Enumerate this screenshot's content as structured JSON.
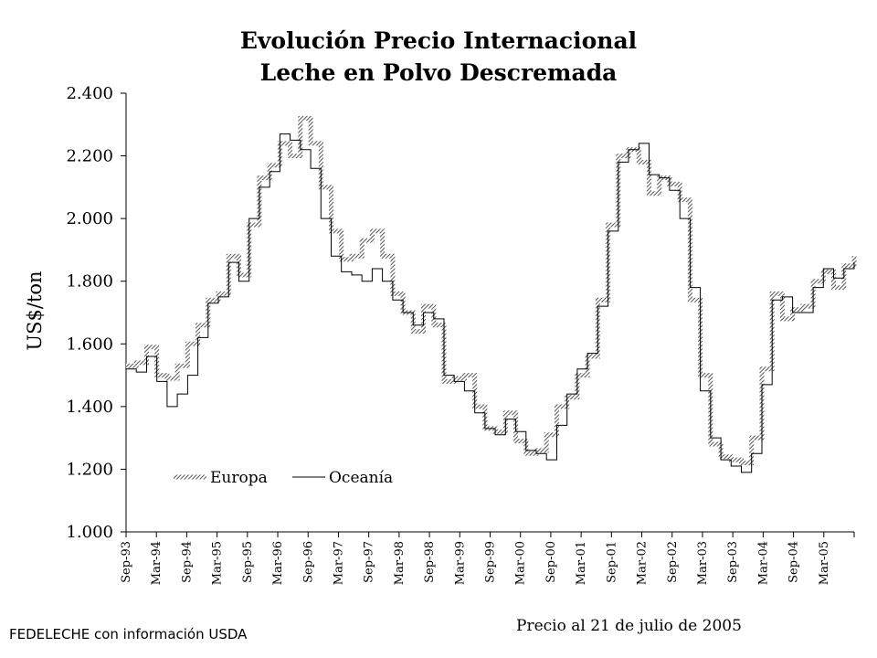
{
  "chart_data": {
    "type": "line",
    "title": "Evolución Precio Internacional",
    "subtitle": "Leche en Polvo Descremada",
    "ylabel": "US$/ton",
    "xlabel": "",
    "ylim": [
      1000,
      2400
    ],
    "yticks": [
      1000,
      1200,
      1400,
      1600,
      1800,
      2000,
      2200,
      2400
    ],
    "ytick_labels": [
      "1.000",
      "1.200",
      "1.400",
      "1.600",
      "1.800",
      "2.000",
      "2.200",
      "2.400"
    ],
    "xtick_labels": [
      "Sep-93",
      "Mar-94",
      "Sep-94",
      "Mar-95",
      "Sep-95",
      "Mar-96",
      "Sep-96",
      "Mar-97",
      "Sep-97",
      "Mar-98",
      "Sep-98",
      "Mar-99",
      "Sep-99",
      "Mar-00",
      "Sep-00",
      "Mar-01",
      "Sep-01",
      "Mar-02",
      "Sep-02",
      "Mar-03",
      "Sep-03",
      "Mar-04",
      "Sep-04",
      "Mar-05"
    ],
    "x_units": "months since Sep-93",
    "xlim": [
      0,
      142
    ],
    "grid": false,
    "legend_position": "bottom-left-inside",
    "series": [
      {
        "name": "Europa",
        "style": "hatched-thick",
        "x": [
          0,
          2,
          4,
          6,
          8,
          10,
          12,
          14,
          16,
          18,
          20,
          22,
          24,
          26,
          28,
          30,
          32,
          34,
          36,
          38,
          40,
          42,
          44,
          46,
          48,
          50,
          52,
          54,
          56,
          58,
          60,
          62,
          64,
          66,
          68,
          70,
          72,
          74,
          76,
          78,
          80,
          82,
          84,
          86,
          88,
          90,
          92,
          94,
          96,
          98,
          100,
          102,
          104,
          106,
          108,
          110,
          112,
          114,
          116,
          118,
          120,
          122,
          124,
          126,
          128,
          130,
          132,
          134,
          136,
          138,
          140,
          142
        ],
        "values": [
          1530,
          1540,
          1590,
          1500,
          1490,
          1530,
          1600,
          1660,
          1740,
          1760,
          1880,
          1820,
          1980,
          2130,
          2170,
          2240,
          2200,
          2320,
          2240,
          2100,
          1960,
          1870,
          1880,
          1930,
          1960,
          1880,
          1760,
          1700,
          1640,
          1720,
          1660,
          1480,
          1490,
          1500,
          1400,
          1330,
          1320,
          1380,
          1290,
          1250,
          1260,
          1310,
          1400,
          1430,
          1500,
          1560,
          1740,
          1980,
          2200,
          2220,
          2180,
          2080,
          2130,
          2110,
          2060,
          1740,
          1500,
          1280,
          1240,
          1230,
          1220,
          1300,
          1520,
          1760,
          1680,
          1710,
          1720,
          1800,
          1830,
          1780,
          1850,
          1880
        ]
      },
      {
        "name": "Oceanía",
        "style": "thin",
        "x": [
          0,
          2,
          4,
          6,
          8,
          10,
          12,
          14,
          16,
          18,
          20,
          22,
          24,
          26,
          28,
          30,
          32,
          34,
          36,
          38,
          40,
          42,
          44,
          46,
          48,
          50,
          52,
          54,
          56,
          58,
          60,
          62,
          64,
          66,
          68,
          70,
          72,
          74,
          76,
          78,
          80,
          82,
          84,
          86,
          88,
          90,
          92,
          94,
          96,
          98,
          100,
          102,
          104,
          106,
          108,
          110,
          112,
          114,
          116,
          118,
          120,
          122,
          124,
          126,
          128,
          130,
          132,
          134,
          136,
          138,
          140,
          142
        ],
        "values": [
          1520,
          1510,
          1560,
          1480,
          1400,
          1440,
          1500,
          1620,
          1730,
          1750,
          1860,
          1800,
          2000,
          2100,
          2150,
          2270,
          2250,
          2220,
          2160,
          2000,
          1880,
          1830,
          1820,
          1800,
          1840,
          1800,
          1740,
          1700,
          1660,
          1700,
          1680,
          1500,
          1480,
          1450,
          1380,
          1330,
          1310,
          1360,
          1320,
          1260,
          1250,
          1230,
          1340,
          1440,
          1520,
          1570,
          1720,
          1960,
          2180,
          2220,
          2240,
          2140,
          2130,
          2090,
          2000,
          1780,
          1450,
          1300,
          1230,
          1210,
          1190,
          1250,
          1470,
          1740,
          1750,
          1700,
          1700,
          1780,
          1840,
          1810,
          1840,
          1860
        ]
      }
    ],
    "footer_note": "Precio al 21 de julio de 2005",
    "source_note": "FEDELECHE con información USDA"
  }
}
